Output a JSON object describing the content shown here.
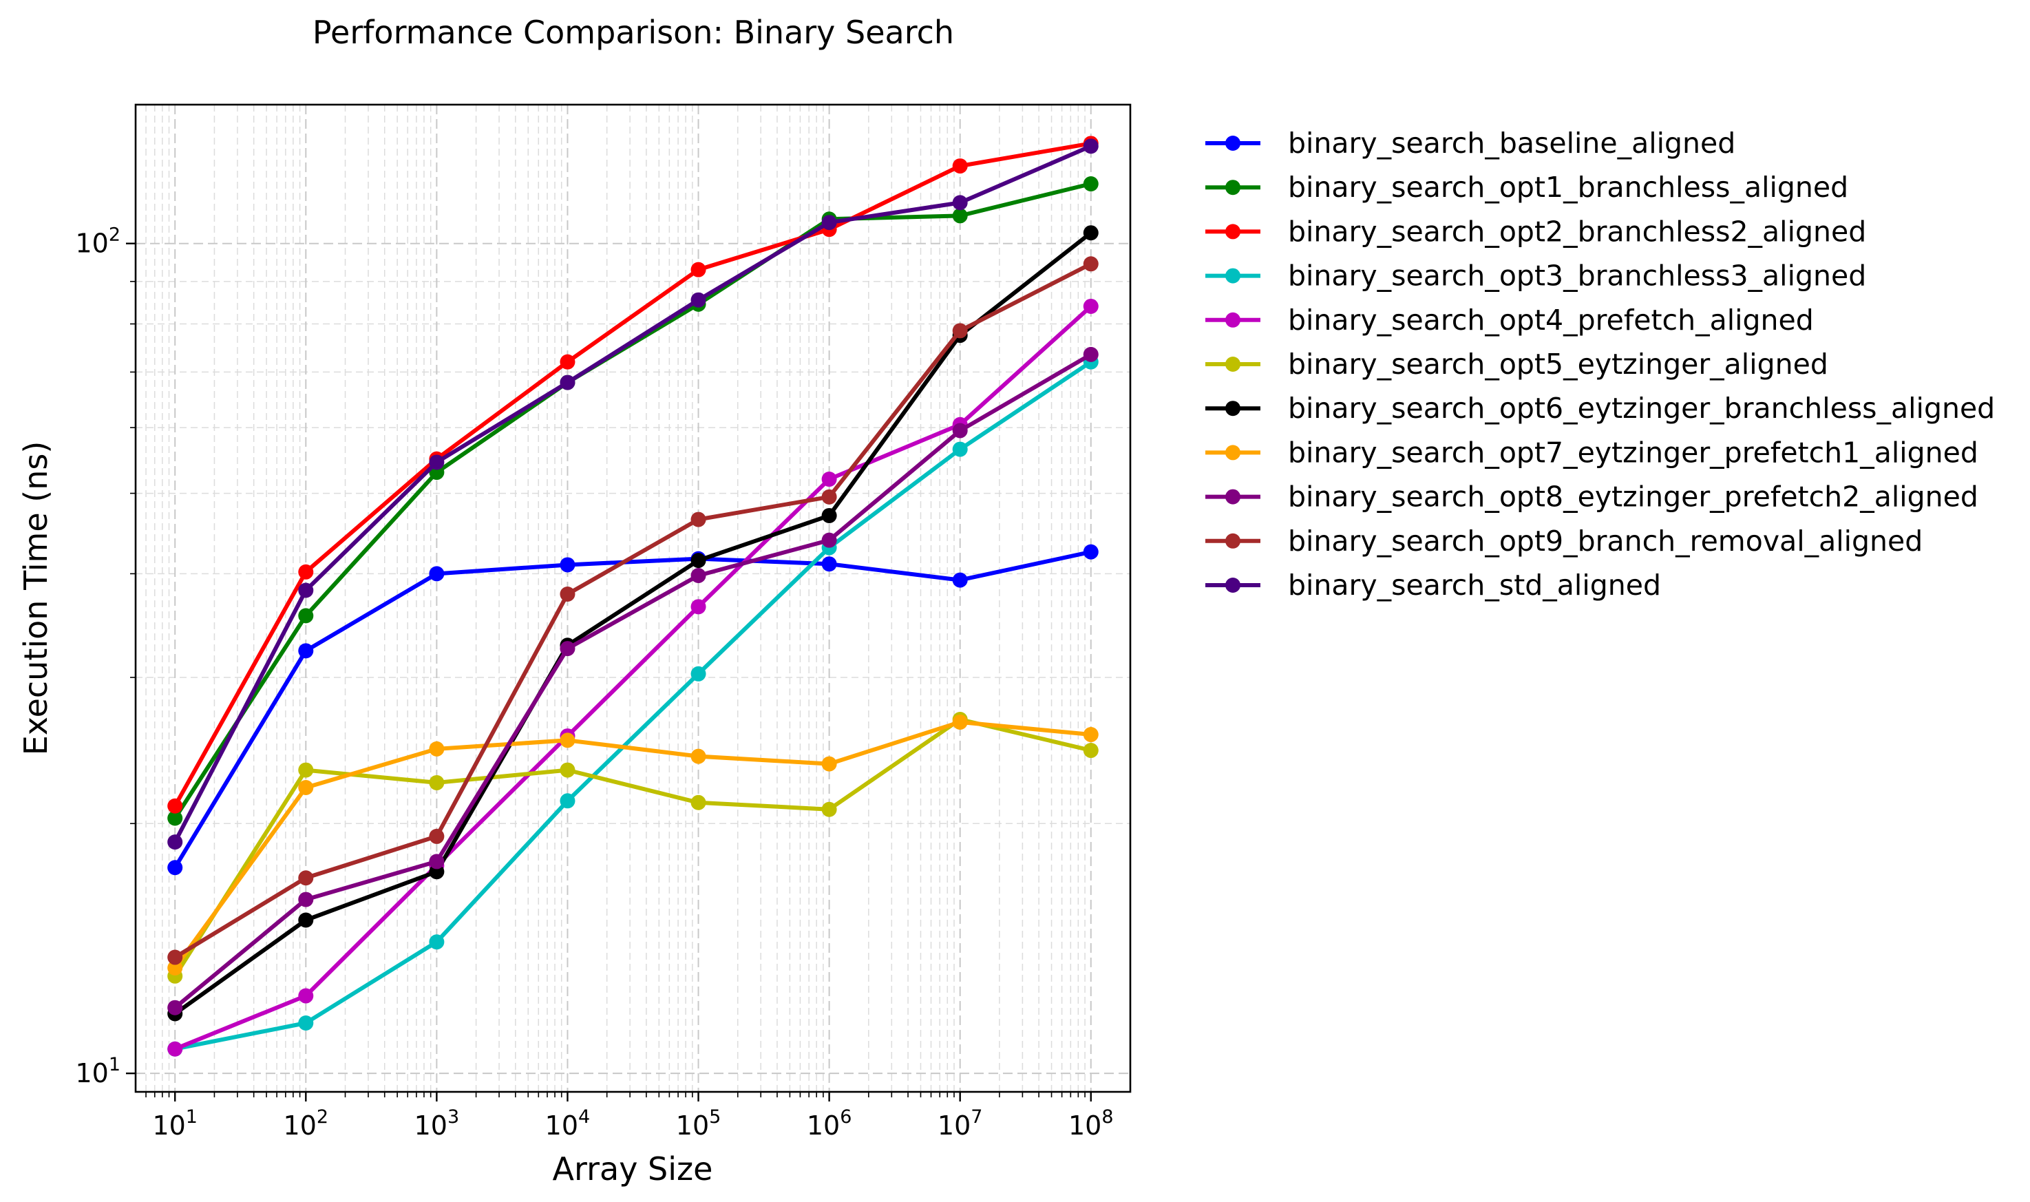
{
  "chart_data": {
    "type": "line",
    "title": "Performance Comparison: Binary Search",
    "xlabel": "Array Size",
    "ylabel": "Execution Time (ns)",
    "xscale": "log",
    "yscale": "log",
    "xlim": [
      5,
      200000000
    ],
    "ylim": [
      9.5,
      147
    ],
    "grid": true,
    "legend_position": "outside-right",
    "x": [
      10,
      100,
      1000,
      10000,
      100000,
      1000000,
      10000000,
      100000000
    ],
    "x_ticks": [
      {
        "base": "10",
        "exp": "1"
      },
      {
        "base": "10",
        "exp": "2"
      },
      {
        "base": "10",
        "exp": "3"
      },
      {
        "base": "10",
        "exp": "4"
      },
      {
        "base": "10",
        "exp": "5"
      },
      {
        "base": "10",
        "exp": "6"
      },
      {
        "base": "10",
        "exp": "7"
      },
      {
        "base": "10",
        "exp": "8"
      }
    ],
    "y_ticks": [
      {
        "value": 10,
        "base": "10",
        "exp": "1"
      },
      {
        "value": 100,
        "base": "10",
        "exp": "2"
      }
    ],
    "series": [
      {
        "name": "binary_search_baseline_aligned",
        "color": "#0000ff",
        "values": [
          17.7,
          32.3,
          40.0,
          41.0,
          41.7,
          41.1,
          39.3,
          42.5
        ]
      },
      {
        "name": "binary_search_opt1_branchless_aligned",
        "color": "#008000",
        "values": [
          20.3,
          35.6,
          53.0,
          68.0,
          84.5,
          107.0,
          108.0,
          118.0
        ]
      },
      {
        "name": "binary_search_opt2_branchless2_aligned",
        "color": "#ff0000",
        "values": [
          21.0,
          40.2,
          55.0,
          72.0,
          93.0,
          104.0,
          124.0,
          132.0
        ]
      },
      {
        "name": "binary_search_opt3_branchless3_aligned",
        "color": "#00bfbf",
        "values": [
          10.7,
          11.5,
          14.4,
          21.3,
          30.3,
          43.0,
          56.5,
          72.0
        ]
      },
      {
        "name": "binary_search_opt4_prefetch_aligned",
        "color": "#bf00bf",
        "values": [
          10.7,
          12.4,
          17.8,
          25.5,
          36.5,
          52.0,
          60.5,
          84.0
        ]
      },
      {
        "name": "binary_search_opt5_eytzinger_aligned",
        "color": "#bfbf00",
        "values": [
          13.1,
          23.2,
          22.4,
          23.2,
          21.2,
          20.8,
          26.7,
          24.5
        ]
      },
      {
        "name": "binary_search_opt6_eytzinger_branchless_aligned",
        "color": "#000000",
        "values": [
          11.8,
          15.3,
          17.5,
          32.8,
          41.5,
          47.0,
          77.5,
          103.0
        ]
      },
      {
        "name": "binary_search_opt7_eytzinger_prefetch1_aligned",
        "color": "#ffa500",
        "values": [
          13.4,
          22.1,
          24.6,
          25.2,
          24.1,
          23.6,
          26.5,
          25.6
        ]
      },
      {
        "name": "binary_search_opt8_eytzinger_prefetch2_aligned",
        "color": "#800080",
        "values": [
          12.0,
          16.2,
          18.0,
          32.5,
          39.8,
          43.9,
          59.5,
          73.5
        ]
      },
      {
        "name": "binary_search_opt9_branch_removal_aligned",
        "color": "#a52a2a",
        "values": [
          13.8,
          17.2,
          19.3,
          37.8,
          46.5,
          49.5,
          78.5,
          94.5
        ]
      },
      {
        "name": "binary_search_std_aligned",
        "color": "#4b0082",
        "values": [
          19.0,
          38.2,
          54.5,
          68.0,
          85.5,
          106.0,
          112.0,
          131.0
        ]
      }
    ]
  }
}
